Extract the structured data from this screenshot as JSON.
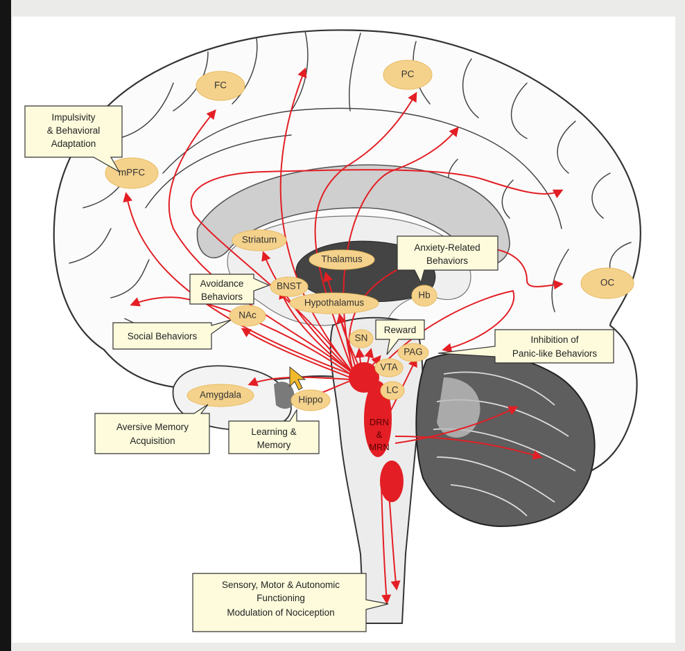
{
  "regions": {
    "fc": "FC",
    "pc": "PC",
    "mpfc": "mPFC",
    "oc": "OC",
    "striatum": "Striatum",
    "thalamus": "Thalamus",
    "bnst": "BNST",
    "hypothalamus": "Hypothalamus",
    "hb": "Hb",
    "nac": "NAc",
    "sn": "SN",
    "vta": "VTA",
    "pag": "PAG",
    "lc": "LC",
    "amygdala": "Amygdala",
    "hippo": "Hippo"
  },
  "nuclei": {
    "drn": "DRN",
    "amp": "&",
    "mrn": "MRN"
  },
  "callouts": {
    "impulsivity": [
      "Impulsivity",
      "& Behavioral",
      "Adaptation"
    ],
    "anxiety": [
      "Anxiety-Related",
      "Behaviors"
    ],
    "avoidance": [
      "Avoidance",
      "Behaviors"
    ],
    "social": [
      "Social Behaviors"
    ],
    "reward": [
      "Reward"
    ],
    "panic": [
      "Inhibition of",
      "Panic-like Behaviors"
    ],
    "aversive": [
      "Aversive Memory",
      "Acquisition"
    ],
    "learning": [
      "Learning &",
      "Memory"
    ],
    "sensory": [
      "Sensory, Motor & Autonomic",
      "Functioning",
      "Modulation of  Nociception"
    ]
  },
  "colors": {
    "projection": "#e31e24",
    "label_fill": "#f5d28c",
    "callout_fill": "#fdfbdc",
    "cerebellum": "#5e5e5e"
  }
}
